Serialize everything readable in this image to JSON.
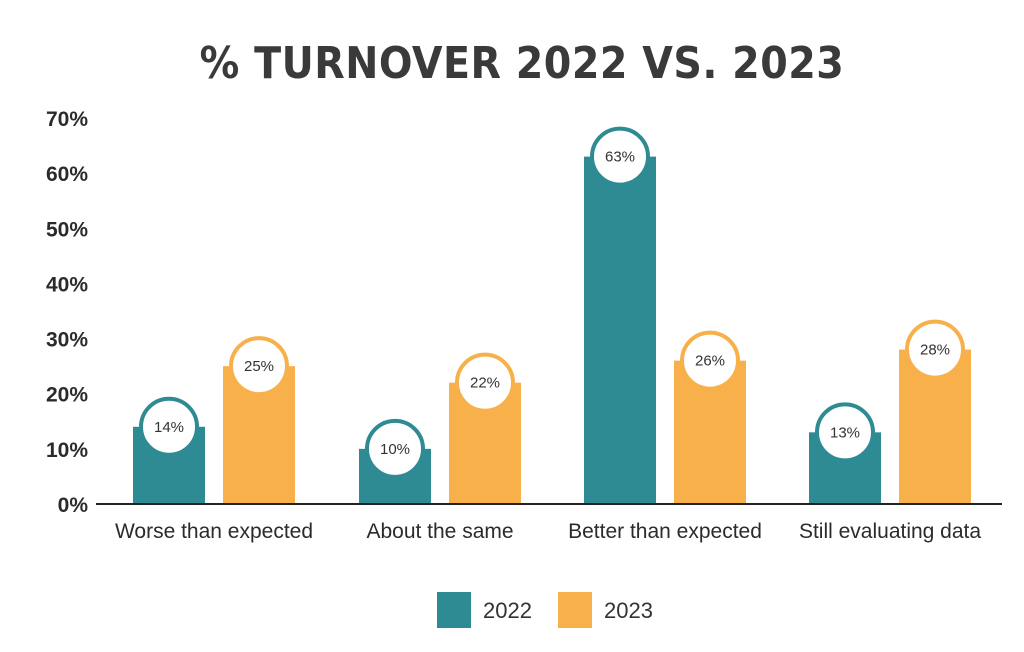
{
  "chart_data": {
    "type": "bar",
    "title": "% TURNOVER 2022 VS. 2023",
    "categories": [
      "Worse than expected",
      "About the same",
      "Better than expected",
      "Still evaluating data"
    ],
    "series": [
      {
        "name": "2022",
        "values": [
          14,
          10,
          63,
          13
        ],
        "labels": [
          "14%",
          "10%",
          "63%",
          "13%"
        ],
        "color": "#2e8b93"
      },
      {
        "name": "2023",
        "values": [
          25,
          22,
          26,
          28
        ],
        "labels": [
          "25%",
          "22%",
          "26%",
          "28%"
        ],
        "color": "#f8b04a"
      }
    ],
    "yticks": [
      "0%",
      "10%",
      "20%",
      "30%",
      "40%",
      "50%",
      "60%",
      "70%"
    ],
    "ylim": [
      0,
      70
    ],
    "grid": false,
    "legend_position": "bottom-center",
    "xlabel": "",
    "ylabel": ""
  }
}
